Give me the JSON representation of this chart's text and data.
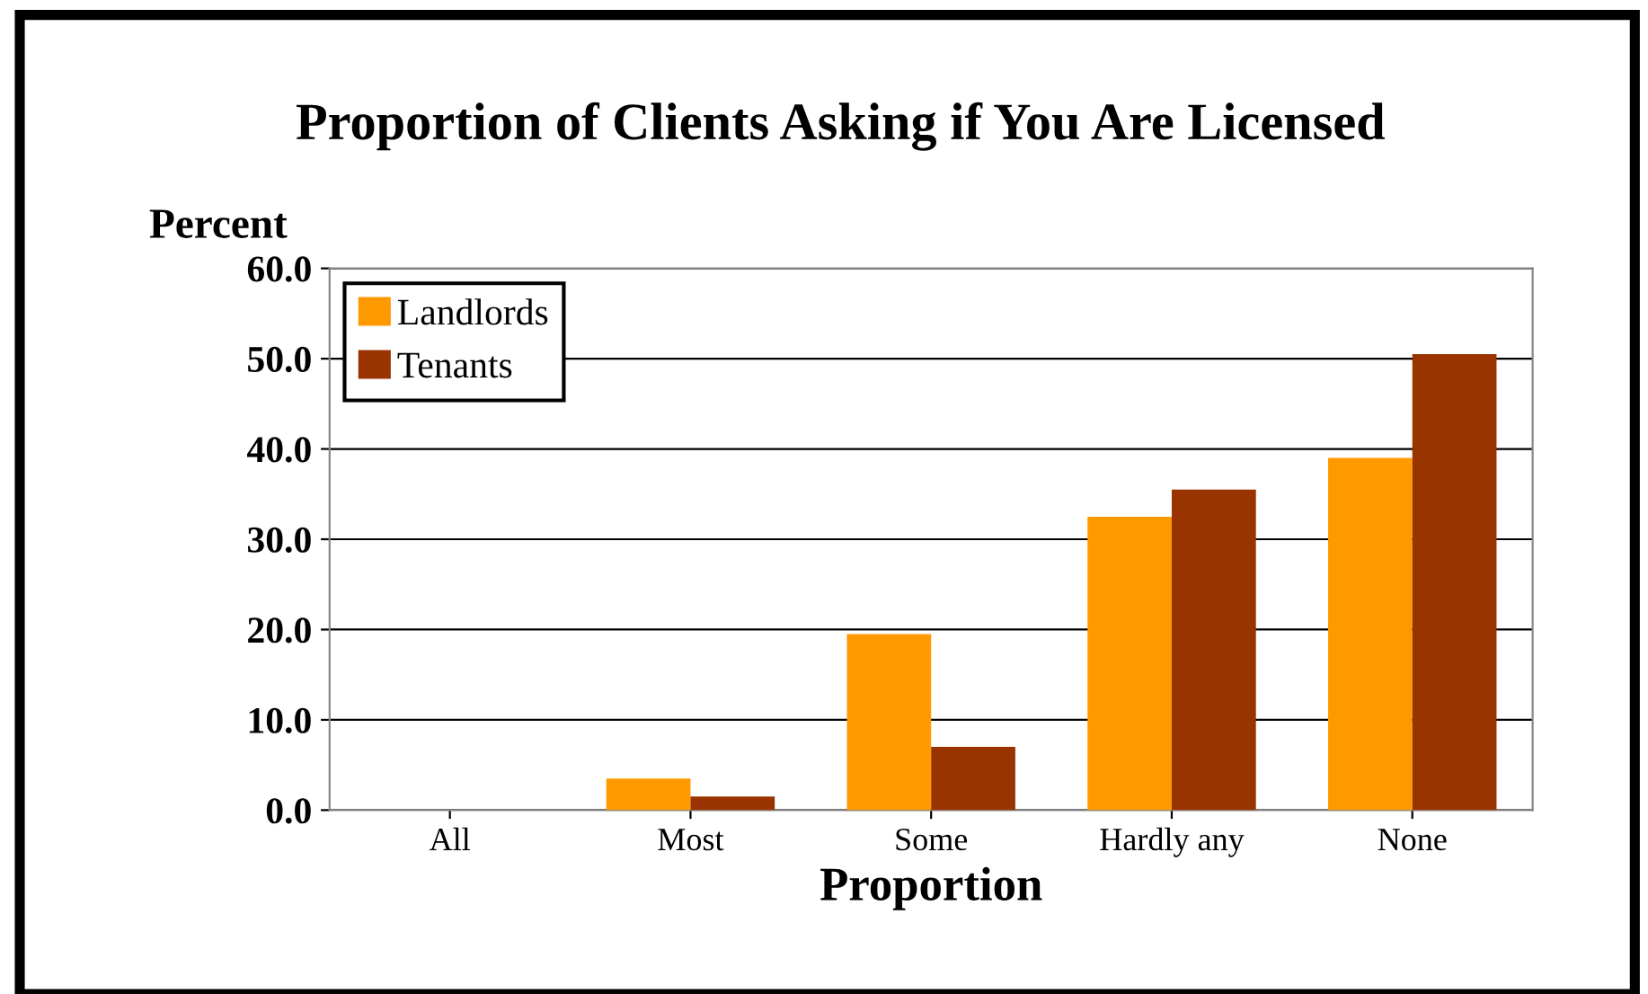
{
  "chart_data": {
    "type": "bar",
    "title": "Proportion of Clients Asking if You Are Licensed",
    "xlabel": "Proportion",
    "ylabel": "Percent",
    "categories": [
      "All",
      "Most",
      "Some",
      "Hardly any",
      "None"
    ],
    "series": [
      {
        "name": "Landlords",
        "color": "#ff9900",
        "values": [
          0,
          3.5,
          19.5,
          32.5,
          39
        ]
      },
      {
        "name": "Tenants",
        "color": "#993300",
        "values": [
          0,
          1.5,
          7,
          35.5,
          50.5
        ]
      }
    ],
    "ylim": [
      0,
      60
    ],
    "yticks": [
      {
        "value": 0,
        "label": "0.0"
      },
      {
        "value": 10,
        "label": "10.0"
      },
      {
        "value": 20,
        "label": "20.0"
      },
      {
        "value": 30,
        "label": "30.0"
      },
      {
        "value": 40,
        "label": "40.0"
      },
      {
        "value": 50,
        "label": "50.0"
      },
      {
        "value": 60,
        "label": "60.0"
      }
    ],
    "grid": "y",
    "legend": "top left"
  }
}
